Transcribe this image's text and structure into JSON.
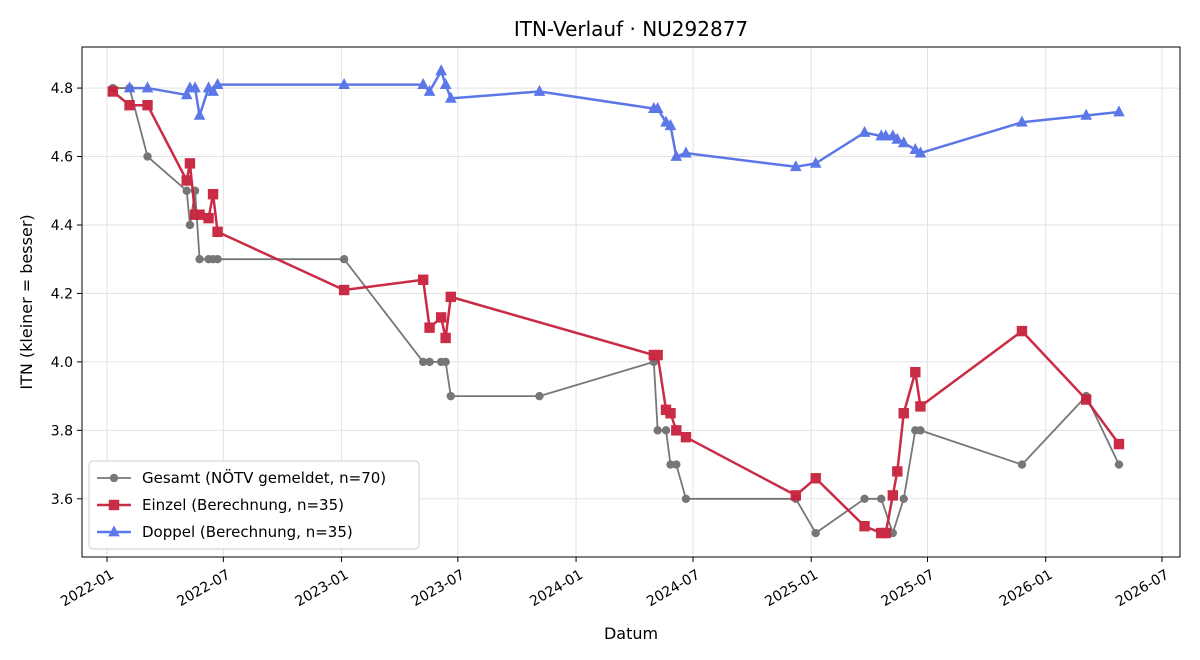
{
  "chart_data": {
    "type": "line",
    "title": "ITN-Verlauf · NU292877",
    "xlabel": "Datum",
    "ylabel": "ITN  (kleiner = besser)",
    "xlim": [
      "2021-11-23",
      "2026-07-29"
    ],
    "ylim": [
      3.43,
      4.92
    ],
    "x_ticks": [
      "2022-01",
      "2022-07",
      "2023-01",
      "2023-07",
      "2024-01",
      "2024-07",
      "2025-01",
      "2025-07",
      "2026-01",
      "2026-07"
    ],
    "y_ticks": [
      3.6,
      3.8,
      4.0,
      4.2,
      4.4,
      4.6,
      4.8
    ],
    "grid": true,
    "legend_position": "lower-left",
    "series": [
      {
        "name": "Gesamt (NÖTV gemeldet, n=70)",
        "color": "#444444",
        "marker": "circle",
        "points": [
          [
            "2022-01-10",
            4.8
          ],
          [
            "2022-02-05",
            4.8
          ],
          [
            "2022-03-05",
            4.6
          ],
          [
            "2022-05-05",
            4.5
          ],
          [
            "2022-05-10",
            4.4
          ],
          [
            "2022-05-18",
            4.5
          ],
          [
            "2022-05-25",
            4.3
          ],
          [
            "2022-06-08",
            4.3
          ],
          [
            "2022-06-15",
            4.3
          ],
          [
            "2022-06-22",
            4.3
          ],
          [
            "2023-01-05",
            4.3
          ],
          [
            "2023-05-08",
            4.0
          ],
          [
            "2023-05-18",
            4.0
          ],
          [
            "2023-06-05",
            4.0
          ],
          [
            "2023-06-12",
            4.0
          ],
          [
            "2023-06-20",
            3.9
          ],
          [
            "2023-11-05",
            3.9
          ],
          [
            "2024-05-01",
            4.0
          ],
          [
            "2024-05-07",
            3.8
          ],
          [
            "2024-05-20",
            3.8
          ],
          [
            "2024-05-27",
            3.7
          ],
          [
            "2024-06-05",
            3.7
          ],
          [
            "2024-06-20",
            3.6
          ],
          [
            "2024-12-08",
            3.6
          ],
          [
            "2025-01-08",
            3.5
          ],
          [
            "2025-03-25",
            3.6
          ],
          [
            "2025-04-20",
            3.6
          ],
          [
            "2025-05-08",
            3.5
          ],
          [
            "2025-05-25",
            3.6
          ],
          [
            "2025-06-12",
            3.8
          ],
          [
            "2025-06-20",
            3.8
          ],
          [
            "2025-11-25",
            3.7
          ],
          [
            "2026-03-05",
            3.9
          ],
          [
            "2026-04-25",
            3.7
          ]
        ]
      },
      {
        "name": "Einzel (Berechnung, n=35)",
        "color": "#c8203c",
        "marker": "square",
        "points": [
          [
            "2022-01-10",
            4.79
          ],
          [
            "2022-02-05",
            4.75
          ],
          [
            "2022-03-05",
            4.75
          ],
          [
            "2022-05-05",
            4.53
          ],
          [
            "2022-05-10",
            4.58
          ],
          [
            "2022-05-18",
            4.43
          ],
          [
            "2022-05-25",
            4.43
          ],
          [
            "2022-06-08",
            4.42
          ],
          [
            "2022-06-15",
            4.49
          ],
          [
            "2022-06-22",
            4.38
          ],
          [
            "2023-01-05",
            4.21
          ],
          [
            "2023-05-08",
            4.24
          ],
          [
            "2023-05-18",
            4.1
          ],
          [
            "2023-06-05",
            4.13
          ],
          [
            "2023-06-12",
            4.07
          ],
          [
            "2023-06-20",
            4.19
          ],
          [
            "2024-05-01",
            4.02
          ],
          [
            "2024-05-07",
            4.02
          ],
          [
            "2024-05-20",
            3.86
          ],
          [
            "2024-05-27",
            3.85
          ],
          [
            "2024-06-05",
            3.8
          ],
          [
            "2024-06-20",
            3.78
          ],
          [
            "2024-12-08",
            3.61
          ],
          [
            "2025-01-08",
            3.66
          ],
          [
            "2025-03-25",
            3.52
          ],
          [
            "2025-04-20",
            3.5
          ],
          [
            "2025-04-27",
            3.5
          ],
          [
            "2025-05-08",
            3.61
          ],
          [
            "2025-05-15",
            3.68
          ],
          [
            "2025-05-25",
            3.85
          ],
          [
            "2025-06-12",
            3.97
          ],
          [
            "2025-06-20",
            3.87
          ],
          [
            "2025-11-25",
            4.09
          ],
          [
            "2026-03-05",
            3.89
          ],
          [
            "2026-04-25",
            3.76
          ]
        ]
      },
      {
        "name": "Doppel (Berechnung, n=35)",
        "color": "#5470e6",
        "marker": "triangle",
        "points": [
          [
            "2022-02-05",
            4.8
          ],
          [
            "2022-03-05",
            4.8
          ],
          [
            "2022-05-05",
            4.78
          ],
          [
            "2022-05-10",
            4.8
          ],
          [
            "2022-05-18",
            4.8
          ],
          [
            "2022-05-25",
            4.72
          ],
          [
            "2022-06-08",
            4.8
          ],
          [
            "2022-06-15",
            4.79
          ],
          [
            "2022-06-22",
            4.81
          ],
          [
            "2023-01-05",
            4.81
          ],
          [
            "2023-05-08",
            4.81
          ],
          [
            "2023-05-18",
            4.79
          ],
          [
            "2023-06-05",
            4.85
          ],
          [
            "2023-06-12",
            4.81
          ],
          [
            "2023-06-20",
            4.77
          ],
          [
            "2023-11-05",
            4.79
          ],
          [
            "2024-05-01",
            4.74
          ],
          [
            "2024-05-07",
            4.74
          ],
          [
            "2024-05-20",
            4.7
          ],
          [
            "2024-05-27",
            4.69
          ],
          [
            "2024-06-05",
            4.6
          ],
          [
            "2024-06-20",
            4.61
          ],
          [
            "2024-12-08",
            4.57
          ],
          [
            "2025-01-08",
            4.58
          ],
          [
            "2025-03-25",
            4.67
          ],
          [
            "2025-04-20",
            4.66
          ],
          [
            "2025-04-27",
            4.66
          ],
          [
            "2025-05-08",
            4.66
          ],
          [
            "2025-05-15",
            4.65
          ],
          [
            "2025-05-25",
            4.64
          ],
          [
            "2025-06-12",
            4.62
          ],
          [
            "2025-06-20",
            4.61
          ],
          [
            "2025-11-25",
            4.7
          ],
          [
            "2026-03-05",
            4.72
          ],
          [
            "2026-04-25",
            4.73
          ]
        ]
      }
    ]
  }
}
